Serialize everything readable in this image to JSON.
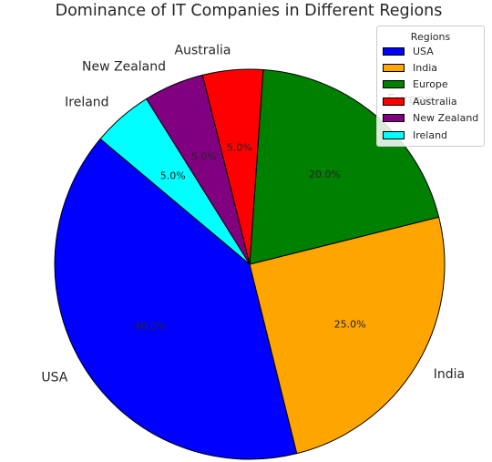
{
  "chart_data": {
    "type": "pie",
    "title": "Dominance of IT Companies in Different Regions",
    "categories": [
      "USA",
      "India",
      "Europe",
      "Australia",
      "New Zealand",
      "Ireland"
    ],
    "values": [
      40.0,
      25.0,
      20.0,
      5.0,
      5.0,
      5.0
    ],
    "percent_labels": [
      "40.0%",
      "25.0%",
      "20.0%",
      "5.0%",
      "5.0%",
      "5.0%"
    ],
    "colors": [
      "#0000ff",
      "#ffa500",
      "#008000",
      "#ff0000",
      "#800080",
      "#00ffff"
    ],
    "start_angle_deg": 140,
    "direction": "counterclockwise",
    "legend": {
      "title": "Regions",
      "placement": "top-right"
    }
  }
}
